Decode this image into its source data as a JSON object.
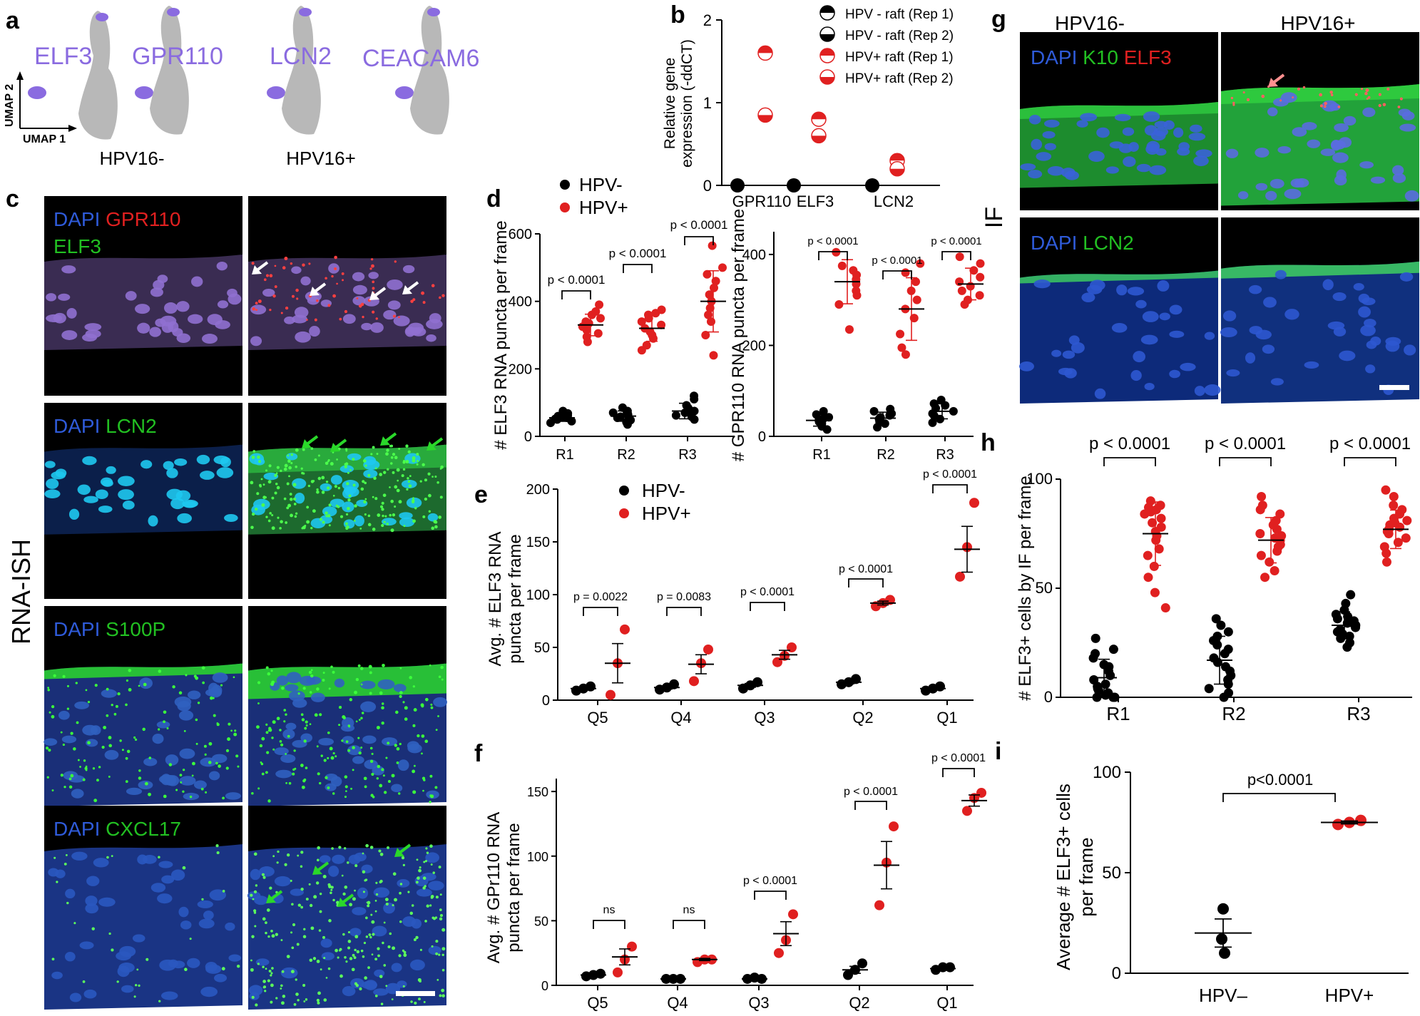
{
  "panels": {
    "a": {
      "letter": "a",
      "umap_x": "UMAP 1",
      "umap_y": "UMAP 2",
      "genes": [
        "ELF3",
        "GPR110",
        "LCN2",
        "CEACAM6"
      ]
    },
    "b": {
      "letter": "b",
      "ylabel": [
        "Relative gene",
        "expression (-ddCT)"
      ],
      "legend": [
        "HPV - raft (Rep 1)",
        "HPV - raft (Rep 2)",
        "HPV+ raft (Rep 1)",
        "HPV+ raft (Rep 2)"
      ]
    },
    "c": {
      "letter": "c",
      "col_labels": [
        "HPV16-",
        "HPV16+"
      ],
      "side_label": "RNA-ISH",
      "rows": [
        {
          "labels": [
            {
              "t": "DAPI ",
              "c": "#2f5bd9"
            },
            {
              "t": "GPR110",
              "c": "#e02020"
            }
          ],
          "line2": [
            {
              "t": "ELF3",
              "c": "#22c022"
            }
          ]
        },
        {
          "labels": [
            {
              "t": "DAPI ",
              "c": "#2f5bd9"
            },
            {
              "t": "LCN2",
              "c": "#22c022"
            }
          ],
          "line2": []
        },
        {
          "labels": [
            {
              "t": "DAPI ",
              "c": "#2f5bd9"
            },
            {
              "t": "S100P",
              "c": "#22c022"
            }
          ],
          "line2": []
        },
        {
          "labels": [
            {
              "t": "DAPI ",
              "c": "#2f5bd9"
            },
            {
              "t": "CXCL17",
              "c": "#22c022"
            }
          ],
          "line2": []
        }
      ]
    },
    "d": {
      "letter": "d",
      "legend": [
        "HPV-",
        "HPV+"
      ],
      "left": {
        "ylabel": "# ELF3 RNA puncta per frame",
        "pvals": [
          "p < 0.0001",
          "p < 0.0001",
          "p < 0.0001"
        ]
      },
      "right": {
        "ylabel": "# GPR110 RNA puncta per frame",
        "pvals": [
          "p < 0.0001",
          "p < 0.0001",
          "p < 0.0001"
        ]
      }
    },
    "e": {
      "letter": "e",
      "legend": [
        "HPV-",
        "HPV+"
      ],
      "ylabel": [
        "Avg. # ELF3 RNA",
        "puncta per frame"
      ],
      "pvals": [
        "p = 0.0022",
        "p = 0.0083",
        "p < 0.0001",
        "p < 0.0001",
        "p < 0.0001"
      ]
    },
    "f": {
      "letter": "f",
      "ylabel": [
        "Avg. # GPr110 RNA",
        "puncta per frame"
      ],
      "pvals": [
        "ns",
        "ns",
        "p < 0.0001",
        "p < 0.0001",
        "p < 0.0001"
      ]
    },
    "g": {
      "letter": "g",
      "col_labels": [
        "HPV16-",
        "HPV16+"
      ],
      "side_label": "IF",
      "row1": [
        {
          "t": "DAPI ",
          "c": "#2f5bd9"
        },
        {
          "t": "K10 ",
          "c": "#22c022"
        },
        {
          "t": "ELF3",
          "c": "#e02020"
        }
      ],
      "row2": [
        {
          "t": "DAPI ",
          "c": "#2f5bd9"
        },
        {
          "t": "LCN2",
          "c": "#22c022"
        }
      ]
    },
    "h": {
      "letter": "h",
      "ylabel": "# ELF3+ cells by IF per frame",
      "pvals": [
        "p < 0.0001",
        "p < 0.0001",
        "p < 0.0001"
      ]
    },
    "i": {
      "letter": "i",
      "ylabel": [
        "Average # ELF3+ cells",
        "per frame"
      ],
      "pval": "p<0.0001"
    }
  },
  "colors": {
    "hpv_neg": "#000000",
    "hpv_pos": "#e02020",
    "umap_gray": "#b8b8b8",
    "umap_highlight": "#8a6be0",
    "gene_label": "#8a6be0"
  },
  "chart_data": [
    {
      "id": "b",
      "type": "scatter",
      "categories": [
        "GPR110",
        "ELF3",
        "LCN2"
      ],
      "ylim": [
        0,
        2
      ],
      "yticks": [
        0,
        1,
        2
      ],
      "series": [
        {
          "name": "HPV - raft (Rep 1)",
          "values": [
            0,
            0,
            0
          ]
        },
        {
          "name": "HPV - raft (Rep 2)",
          "values": [
            0,
            0,
            0
          ]
        },
        {
          "name": "HPV+ raft (Rep 1)",
          "values": [
            1.6,
            0.8,
            0.3
          ]
        },
        {
          "name": "HPV+ raft (Rep 2)",
          "values": [
            0.85,
            0.6,
            0.2
          ]
        }
      ]
    },
    {
      "id": "d-left",
      "type": "scatter",
      "categories": [
        "R1",
        "R2",
        "R3"
      ],
      "ylim": [
        0,
        600
      ],
      "yticks": [
        0,
        200,
        400,
        600
      ],
      "series": [
        {
          "name": "HPV-",
          "means": [
            55,
            60,
            75
          ],
          "points": [
            [
              40,
              45,
              50,
              52,
              55,
              58,
              60,
              62,
              68,
              75
            ],
            [
              35,
              42,
              48,
              55,
              58,
              62,
              66,
              70,
              75,
              85
            ],
            [
              50,
              58,
              62,
              70,
              75,
              80,
              85,
              92,
              110,
              120
            ]
          ]
        },
        {
          "name": "HPV+",
          "means": [
            330,
            320,
            400
          ],
          "points": [
            [
              280,
              295,
              305,
              315,
              325,
              330,
              335,
              340,
              350,
              360,
              370,
              390
            ],
            [
              255,
              270,
              290,
              300,
              310,
              320,
              330,
              340,
              350,
              360,
              365,
              375
            ],
            [
              240,
              300,
              340,
              360,
              380,
              400,
              420,
              440,
              460,
              480,
              500,
              565
            ]
          ]
        }
      ]
    },
    {
      "id": "d-right",
      "type": "scatter",
      "categories": [
        "R1",
        "R2",
        "R3"
      ],
      "ylim": [
        0,
        450
      ],
      "yticks": [
        0,
        200,
        400
      ],
      "series": [
        {
          "name": "HPV-",
          "means": [
            35,
            40,
            55
          ],
          "points": [
            [
              15,
              22,
              28,
              32,
              35,
              38,
              42,
              48,
              55
            ],
            [
              20,
              28,
              32,
              38,
              42,
              46,
              50,
              55,
              60
            ],
            [
              30,
              38,
              45,
              50,
              55,
              62,
              68,
              72,
              80
            ]
          ]
        },
        {
          "name": "HPV+",
          "means": [
            340,
            280,
            335
          ],
          "points": [
            [
              235,
              290,
              310,
              320,
              335,
              345,
              355,
              365,
              375,
              405
            ],
            [
              180,
              195,
              225,
              260,
              280,
              300,
              320,
              340,
              360,
              380
            ],
            [
              290,
              300,
              310,
              320,
              330,
              340,
              350,
              365,
              380,
              395
            ]
          ]
        }
      ]
    },
    {
      "id": "e",
      "type": "scatter",
      "categories": [
        "Q5",
        "Q4",
        "Q3",
        "Q2",
        "Q1"
      ],
      "ylim": [
        0,
        200
      ],
      "yticks": [
        0,
        50,
        100,
        150,
        200
      ],
      "series": [
        {
          "name": "HPV-",
          "means": [
            11,
            12,
            14,
            17,
            11
          ],
          "points": [
            [
              9,
              11,
              13
            ],
            [
              10,
              12,
              15
            ],
            [
              11,
              14,
              17
            ],
            [
              15,
              17,
              20
            ],
            [
              9,
              11,
              13
            ]
          ]
        },
        {
          "name": "HPV+",
          "means": [
            35,
            34,
            43,
            92,
            143
          ],
          "points": [
            [
              5,
              35,
              67
            ],
            [
              18,
              35,
              48
            ],
            [
              36,
              42,
              50
            ],
            [
              89,
              92,
              95
            ],
            [
              117,
              145,
              187
            ]
          ]
        }
      ]
    },
    {
      "id": "f",
      "type": "scatter",
      "categories": [
        "Q5",
        "Q4",
        "Q3",
        "Q2",
        "Q1"
      ],
      "ylim": [
        0,
        160
      ],
      "yticks": [
        0,
        50,
        100,
        150
      ],
      "series": [
        {
          "name": "HPV-",
          "means": [
            8,
            5,
            5,
            12,
            13
          ],
          "points": [
            [
              7,
              8,
              9
            ],
            [
              5,
              5,
              5
            ],
            [
              5,
              6,
              5
            ],
            [
              8,
              12,
              17
            ],
            [
              12,
              14,
              14
            ]
          ]
        },
        {
          "name": "HPV+",
          "means": [
            22,
            20,
            40,
            93,
            143
          ],
          "points": [
            [
              10,
              20,
              30
            ],
            [
              18,
              20,
              20
            ],
            [
              25,
              35,
              55
            ],
            [
              62,
              95,
              123
            ],
            [
              135,
              145,
              149
            ]
          ]
        }
      ]
    },
    {
      "id": "h",
      "type": "scatter",
      "categories": [
        "R1",
        "R2",
        "R3"
      ],
      "ylim": [
        0,
        100
      ],
      "yticks": [
        0,
        50,
        100
      ],
      "series": [
        {
          "name": "HPV-",
          "means": [
            9,
            17,
            33
          ],
          "points": [
            [
              0,
              0,
              0,
              1,
              2,
              3,
              4,
              5,
              6,
              8,
              10,
              12,
              14,
              15,
              18,
              20,
              22,
              27
            ],
            [
              0,
              2,
              4,
              6,
              8,
              10,
              12,
              14,
              16,
              18,
              20,
              22,
              24,
              26,
              28,
              30,
              33,
              36
            ],
            [
              23,
              25,
              27,
              28,
              29,
              30,
              31,
              32,
              33,
              34,
              34,
              35,
              36,
              37,
              38,
              40,
              43,
              47
            ]
          ]
        },
        {
          "name": "HPV+",
          "means": [
            75,
            72,
            77
          ],
          "points": [
            [
              41,
              48,
              55,
              60,
              65,
              68,
              72,
              74,
              76,
              78,
              80,
              82,
              84,
              85,
              86,
              87,
              88,
              90
            ],
            [
              55,
              58,
              62,
              65,
              67,
              69,
              70,
              72,
              73,
              74,
              75,
              77,
              79,
              81,
              84,
              86,
              88,
              92
            ],
            [
              62,
              66,
              69,
              71,
              73,
              75,
              76,
              77,
              78,
              79,
              80,
              81,
              82,
              84,
              86,
              88,
              92,
              95
            ]
          ]
        }
      ]
    },
    {
      "id": "i",
      "type": "scatter",
      "categories": [
        "HPV–",
        "HPV+"
      ],
      "ylim": [
        0,
        100
      ],
      "yticks": [
        0,
        50,
        100
      ],
      "series": [
        {
          "name": "HPV–",
          "mean": 20,
          "points": [
            32,
            17,
            10
          ]
        },
        {
          "name": "HPV+",
          "mean": 75,
          "points": [
            74,
            75,
            76
          ]
        }
      ]
    }
  ]
}
